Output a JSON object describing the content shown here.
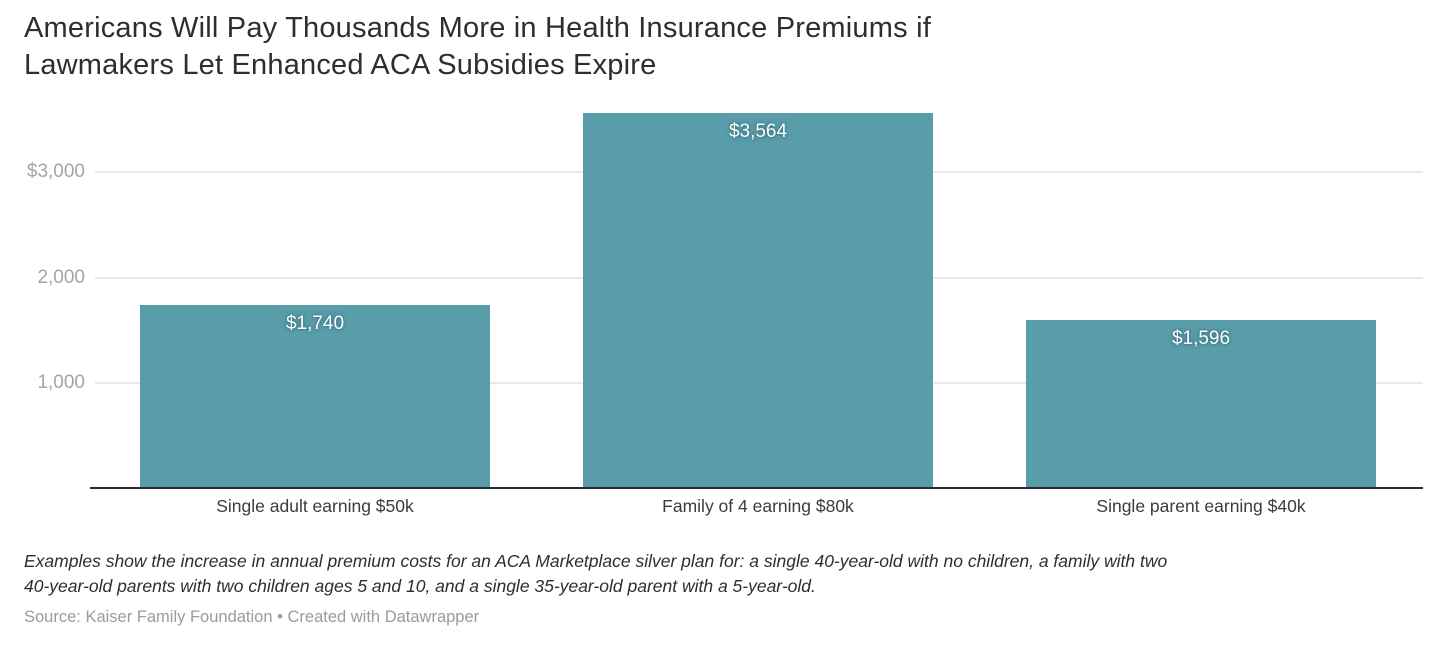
{
  "title": {
    "full": "Americans Will Pay Thousands More in Health Insurance Premiums if Lawmakers Let Enhanced ACA Subsidies Expire",
    "lines": [
      "Americans Will Pay Thousands More in Health Insurance Premiums if",
      "Lawmakers Let Enhanced ACA Subsidies Expire"
    ]
  },
  "chart_data": {
    "type": "bar",
    "title": "Americans Will Pay Thousands More in Health Insurance Premiums if Lawmakers Let Enhanced ACA Subsidies Expire",
    "categories": [
      "Single adult earning $50k",
      "Family of 4 earning $80k",
      "Single parent earning $40k"
    ],
    "values": [
      1740,
      3564,
      1596
    ],
    "value_labels": [
      "$1,740",
      "$3,564",
      "$1,596"
    ],
    "yticks": [
      {
        "value": 3000,
        "label": "$3,000"
      },
      {
        "value": 2000,
        "label": "2,000"
      },
      {
        "value": 1000,
        "label": "1,000"
      }
    ],
    "ylim": [
      0,
      3564
    ],
    "grid": true,
    "legend": "none",
    "xlabel": "",
    "ylabel": "",
    "bar_color": "#5a9daa",
    "gridline_color": "#e9e9e9",
    "axis_label_color": "#a5a5a5",
    "value_label_color": "#ffffff"
  },
  "footnote": {
    "lines": [
      "Examples show the increase in annual premium costs for an ACA Marketplace silver plan for: a single 40-year-old with no children, a family with two",
      "40-year-old parents with two children ages 5 and 10, and a single 35-year-old parent with a 5-year-old."
    ]
  },
  "source": "Source: Kaiser Family Foundation • Created with Datawrapper"
}
